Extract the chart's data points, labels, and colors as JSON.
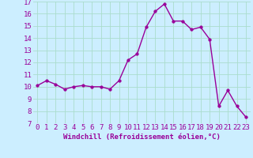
{
  "x": [
    0,
    1,
    2,
    3,
    4,
    5,
    6,
    7,
    8,
    9,
    10,
    11,
    12,
    13,
    14,
    15,
    16,
    17,
    18,
    19,
    20,
    21,
    22,
    23
  ],
  "y": [
    10.1,
    10.5,
    10.2,
    9.8,
    10.0,
    10.1,
    10.0,
    10.0,
    9.8,
    10.5,
    12.2,
    12.7,
    14.9,
    16.2,
    16.8,
    15.4,
    15.4,
    14.7,
    14.9,
    13.9,
    8.4,
    9.7,
    8.4,
    7.5
  ],
  "line_color": "#990099",
  "marker_color": "#990099",
  "bg_color": "#cceeff",
  "grid_color": "#aaddcc",
  "xlabel": "Windchill (Refroidissement éolien,°C)",
  "ylim": [
    7,
    17
  ],
  "xlim_min": -0.5,
  "xlim_max": 23.5,
  "yticks": [
    7,
    8,
    9,
    10,
    11,
    12,
    13,
    14,
    15,
    16,
    17
  ],
  "xticks": [
    0,
    1,
    2,
    3,
    4,
    5,
    6,
    7,
    8,
    9,
    10,
    11,
    12,
    13,
    14,
    15,
    16,
    17,
    18,
    19,
    20,
    21,
    22,
    23
  ],
  "xlabel_fontsize": 6.5,
  "tick_fontsize": 6.5,
  "line_width": 1.0,
  "marker_size": 2.5
}
